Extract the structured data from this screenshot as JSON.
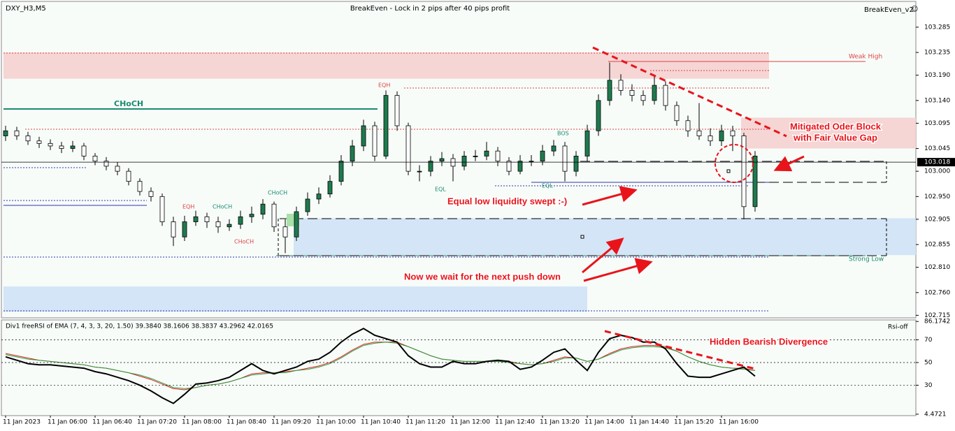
{
  "header": {
    "symbol": "DXY_H3,M5",
    "title": "BreakEven - Lock in 2 pips after 40 pips profit",
    "indicator": "BreakEven_v2",
    "icon": "☺"
  },
  "chart_data": [
    {
      "type": "candlestick",
      "categories": [
        "11 Jan 2023",
        null,
        null,
        null,
        "11 Jan 06:00",
        null,
        null,
        null,
        "11 Jan 06:40",
        null,
        null,
        null,
        "11 Jan 07:20",
        null,
        null,
        null,
        "11 Jan 08:00",
        null,
        null,
        null,
        "11 Jan 08:40",
        null,
        null,
        null,
        "11 Jan 09:20",
        null,
        null,
        null,
        "11 Jan 10:00",
        null,
        null,
        null,
        "11 Jan 10:40",
        null,
        null,
        null,
        "11 Jan 11:20",
        null,
        null,
        null,
        "11 Jan 12:00",
        null,
        null,
        null,
        "11 Jan 12:40",
        null,
        null,
        null,
        "11 Jan 13:20",
        null,
        null,
        null,
        "11 Jan 14:00",
        null,
        null,
        null,
        "11 Jan 14:40",
        null,
        null,
        null,
        "11 Jan 15:20",
        null,
        null,
        null,
        "11 Jan 16:00",
        null,
        null,
        null
      ],
      "open": [
        103.07,
        103.08,
        103.07,
        103.06,
        103.055,
        103.05,
        103.045,
        103.05,
        103.03,
        103.02,
        103.01,
        103.0,
        102.98,
        102.96,
        102.95,
        102.9,
        102.87,
        102.9,
        102.91,
        102.9,
        102.89,
        102.895,
        102.91,
        102.915,
        102.935,
        102.89,
        102.87,
        102.92,
        102.945,
        102.955,
        102.98,
        103.02,
        103.05,
        103.09,
        103.03,
        103.15,
        103.09,
        103.0,
        103.0,
        103.02,
        103.025,
        103.01,
        103.03,
        103.03,
        103.04,
        103.02,
        103.0,
        103.02,
        103.02,
        103.04,
        103.05,
        103.0,
        103.03,
        103.08,
        103.14,
        103.18,
        103.16,
        103.15,
        103.14,
        103.17,
        103.13,
        103.1,
        103.08,
        103.07,
        103.06,
        103.08,
        103.07,
        102.93
      ],
      "high": [
        103.09,
        103.088,
        103.078,
        103.068,
        103.063,
        103.058,
        103.06,
        103.056,
        103.036,
        103.028,
        103.018,
        103.006,
        102.986,
        102.968,
        102.956,
        102.91,
        102.912,
        102.922,
        102.918,
        102.91,
        102.905,
        102.922,
        102.93,
        102.945,
        102.94,
        102.905,
        102.93,
        102.958,
        102.968,
        102.992,
        103.032,
        103.062,
        103.102,
        103.098,
        103.16,
        103.158,
        103.096,
        103.012,
        103.03,
        103.038,
        103.034,
        103.04,
        103.042,
        103.058,
        103.048,
        103.028,
        103.032,
        103.032,
        103.052,
        103.062,
        103.058,
        103.04,
        103.092,
        103.152,
        103.215,
        103.192,
        103.172,
        103.16,
        103.19,
        103.178,
        103.138,
        103.11,
        103.135,
        103.085,
        103.092,
        103.09,
        103.076,
        103.04
      ],
      "low": [
        103.06,
        103.062,
        103.052,
        103.046,
        103.042,
        103.036,
        103.038,
        103.022,
        103.012,
        103.002,
        102.992,
        102.972,
        102.952,
        102.94,
        102.892,
        102.852,
        102.862,
        102.892,
        102.888,
        102.878,
        102.882,
        102.886,
        102.898,
        102.905,
        102.88,
        102.838,
        102.862,
        102.912,
        102.935,
        102.948,
        102.972,
        103.01,
        103.04,
        103.02,
        103.024,
        103.08,
        102.992,
        102.98,
        102.99,
        103.01,
        102.98,
        103.002,
        103.02,
        103.022,
        103.01,
        102.992,
        102.994,
        103.01,
        103.012,
        103.03,
        102.98,
        102.99,
        103.02,
        103.07,
        103.13,
        103.15,
        103.138,
        103.13,
        103.132,
        103.12,
        103.09,
        103.068,
        103.062,
        103.05,
        103.05,
        103.04,
        102.905,
        102.92
      ],
      "close": [
        103.08,
        103.07,
        103.06,
        103.055,
        103.05,
        103.045,
        103.05,
        103.03,
        103.02,
        103.01,
        103.0,
        102.98,
        102.96,
        102.95,
        102.9,
        102.87,
        102.9,
        102.91,
        102.9,
        102.89,
        102.895,
        102.91,
        102.915,
        102.935,
        102.89,
        102.87,
        102.92,
        102.945,
        102.955,
        102.98,
        103.02,
        103.05,
        103.09,
        103.03,
        103.15,
        103.09,
        103.0,
        103.0,
        103.02,
        103.025,
        103.01,
        103.03,
        103.03,
        103.04,
        103.02,
        103.0,
        103.02,
        103.02,
        103.04,
        103.05,
        103.0,
        103.03,
        103.08,
        103.14,
        103.18,
        103.16,
        103.15,
        103.14,
        103.17,
        103.13,
        103.1,
        103.08,
        103.07,
        103.06,
        103.08,
        103.07,
        102.93,
        103.03
      ],
      "up_color": "#1e7b4e",
      "down_color": "#ffffff",
      "ylim": [
        102.71,
        103.336
      ],
      "yticks": [
        103.285,
        103.235,
        {
          "value": 103.19,
          "label": "103.190"
        },
        {
          "value": 103.14,
          "label": "103.140"
        },
        103.095,
        103.045,
        {
          "value": 103,
          "label": "103.000"
        },
        {
          "value": 102.95,
          "label": "102.950"
        },
        102.905,
        102.855,
        {
          "value": 102.81,
          "label": "102.810"
        },
        {
          "value": 102.76,
          "label": "102.760"
        },
        102.715
      ],
      "last_price": 103.018,
      "zones": [
        {
          "name": "Weak High",
          "range": [
            103.183,
            103.235
          ],
          "color": "#f6d5d5"
        },
        {
          "range": [
            103.045,
            103.106
          ],
          "color": "#f6d5d5"
        },
        {
          "name": "Strong Low",
          "range": [
            102.834,
            102.907
          ],
          "color": "#d3e5f6"
        },
        {
          "range": [
            102.722,
            102.772
          ],
          "color": "#d3e5f6"
        }
      ],
      "annotations": [
        "CHoCH",
        "EQH",
        "EQH",
        "BOS",
        "EQL",
        "EQL",
        "CHoCH",
        "CHoCH",
        "CHoCH",
        "Equal low liquidity swept :-)",
        "Now we wait for the next push down",
        "Mitigated Oder Block",
        "with Fair Value Gap"
      ]
    },
    {
      "type": "line",
      "title": "Div1 freeRSI of EMA (7, 4, 3, 3, 20, 1.50) 39.3840 38.1606 38.3837 43.2962 42.0165",
      "label": "Rsi-off",
      "annotation": "Hidden Bearish Divergence",
      "ylim": [
        3.2,
        86.3
      ],
      "yticks": [
        86.1742,
        70,
        50,
        30,
        4.4721
      ],
      "grid": true,
      "series": [
        {
          "color": "#e02020",
          "values": [
            58,
            56,
            54,
            52,
            51,
            50,
            49,
            48,
            46,
            45,
            43,
            41,
            38,
            35,
            31,
            27,
            26,
            28,
            30,
            31,
            33,
            36,
            40,
            41,
            41,
            42,
            43,
            45,
            47,
            50,
            55,
            61,
            66,
            68,
            68,
            68,
            64,
            60,
            56,
            53,
            52,
            51,
            51,
            51,
            51,
            51,
            49,
            48,
            49,
            52,
            55,
            54,
            51,
            53,
            58,
            62,
            64,
            65,
            65,
            64,
            60,
            55,
            51,
            48,
            46,
            45,
            45,
            43
          ]
        },
        {
          "color": "#2a9a3a",
          "values": [
            57,
            55,
            53,
            52,
            51,
            50,
            49,
            48,
            46,
            45,
            43,
            41,
            39,
            36,
            32,
            28,
            27,
            28,
            30,
            31,
            33,
            36,
            39,
            40,
            41,
            41,
            43,
            44,
            46,
            49,
            54,
            60,
            65,
            67,
            68,
            67,
            64,
            60,
            56,
            53,
            52,
            51,
            51,
            51,
            51,
            50,
            49,
            48,
            49,
            51,
            54,
            54,
            51,
            53,
            57,
            61,
            63,
            64,
            64,
            63,
            60,
            55,
            51,
            48,
            46,
            45,
            44,
            43
          ]
        },
        {
          "color": "#000000",
          "values": [
            55,
            52,
            49,
            48,
            48,
            47,
            46,
            45,
            42,
            40,
            37,
            34,
            30,
            25,
            19,
            14,
            22,
            31,
            32,
            34,
            37,
            43,
            49,
            43,
            40,
            43,
            46,
            51,
            53,
            59,
            68,
            75,
            80,
            74,
            71,
            68,
            56,
            49,
            46,
            46,
            51,
            49,
            49,
            51,
            52,
            51,
            44,
            46,
            52,
            59,
            62,
            52,
            43,
            59,
            71,
            74,
            72,
            68,
            68,
            62,
            49,
            38,
            37,
            37,
            40,
            43,
            46,
            38
          ]
        }
      ]
    }
  ]
}
